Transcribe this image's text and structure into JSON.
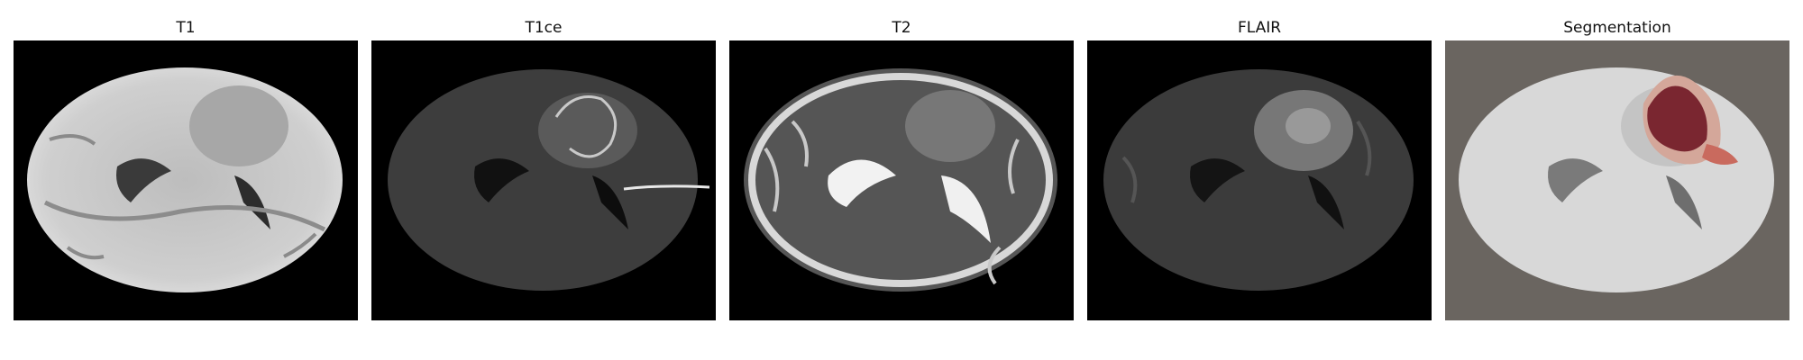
{
  "panels": [
    {
      "title": "T1",
      "modality": "t1"
    },
    {
      "title": "T1ce",
      "modality": "t1ce"
    },
    {
      "title": "T2",
      "modality": "t2"
    },
    {
      "title": "FLAIR",
      "modality": "flair"
    },
    {
      "title": "Segmentation",
      "modality": "segmentation"
    }
  ],
  "colors": {
    "background": "#000000",
    "segmentation_background": "#6a6560",
    "tumor_core": "#7a2630",
    "tumor_edema": "#d4a79a",
    "tumor_enhancing": "#c96a5e"
  }
}
